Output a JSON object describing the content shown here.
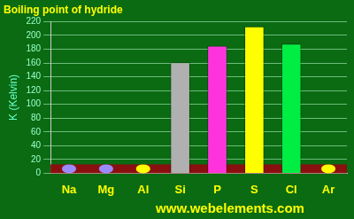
{
  "chart_data": {
    "type": "bar",
    "title": "Boiling point of hydride",
    "y_label": "K (Kelvin)",
    "annotation": "www.webelements.com",
    "categories": [
      "Na",
      "Mg",
      "Al",
      "Si",
      "P",
      "S",
      "Cl",
      "Ar"
    ],
    "values": [
      null,
      null,
      null,
      161,
      185,
      213,
      188,
      null
    ],
    "colors": [
      "#9a8cff",
      "#9a8cff",
      "#ffff00",
      "#b0b0b0",
      "#ff33dd",
      "#ffff00",
      "#00ee44",
      "#ffff00"
    ],
    "ylim": [
      0,
      220
    ],
    "yticks": [
      0,
      20,
      40,
      60,
      80,
      100,
      120,
      140,
      160,
      180,
      200,
      220
    ],
    "grid": true
  }
}
